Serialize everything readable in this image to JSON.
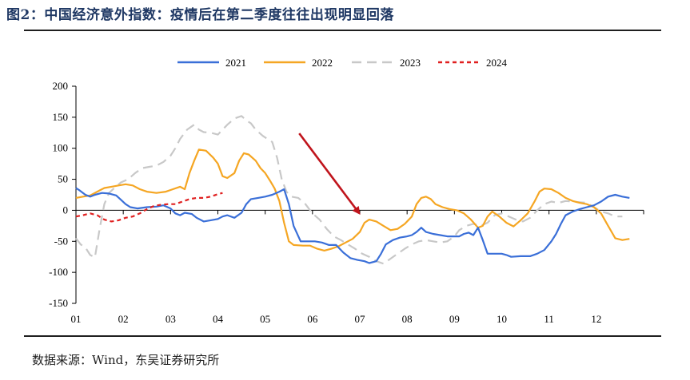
{
  "header": {
    "title": "图2：中国经济意外指数：疫情后在第二季度往往出现明显回落"
  },
  "footer": {
    "source": "数据来源：Wind，东吴证券研究所"
  },
  "colors": {
    "2021": "#3a6fd8",
    "2022": "#f5a623",
    "2023": "#c8c8c8",
    "2024": "#e02020",
    "arrow": "#c0141c",
    "title": "#1f3864"
  },
  "chart_data": {
    "type": "line",
    "title": "",
    "xlabel": "",
    "ylabel": "",
    "x_ticks": [
      "01",
      "02",
      "03",
      "04",
      "05",
      "06",
      "07",
      "08",
      "09",
      "10",
      "11",
      "12"
    ],
    "y_ticks": [
      -150,
      -100,
      -50,
      0,
      50,
      100,
      150,
      200
    ],
    "ylim": [
      -150,
      200
    ],
    "xlim": [
      0,
      12
    ],
    "grid": false,
    "legend_position": "top",
    "annotation": "red arrow pointing down toward July",
    "series": [
      {
        "name": "2021",
        "style": "solid",
        "points": [
          [
            0.0,
            36
          ],
          [
            0.08,
            32
          ],
          [
            0.2,
            25
          ],
          [
            0.3,
            22
          ],
          [
            0.4,
            25
          ],
          [
            0.55,
            28
          ],
          [
            0.7,
            27
          ],
          [
            0.85,
            24
          ],
          [
            0.95,
            17
          ],
          [
            1.05,
            10
          ],
          [
            1.15,
            5
          ],
          [
            1.3,
            3
          ],
          [
            1.5,
            5
          ],
          [
            1.7,
            6
          ],
          [
            1.85,
            8
          ],
          [
            2.0,
            3
          ],
          [
            2.1,
            -5
          ],
          [
            2.2,
            -8
          ],
          [
            2.3,
            -4
          ],
          [
            2.45,
            -6
          ],
          [
            2.55,
            -12
          ],
          [
            2.7,
            -18
          ],
          [
            2.85,
            -16
          ],
          [
            3.0,
            -14
          ],
          [
            3.1,
            -10
          ],
          [
            3.2,
            -8
          ],
          [
            3.35,
            -12
          ],
          [
            3.5,
            -4
          ],
          [
            3.6,
            10
          ],
          [
            3.7,
            18
          ],
          [
            3.85,
            20
          ],
          [
            4.0,
            22
          ],
          [
            4.15,
            25
          ],
          [
            4.3,
            30
          ],
          [
            4.4,
            34
          ],
          [
            4.5,
            10
          ],
          [
            4.6,
            -25
          ],
          [
            4.75,
            -50
          ],
          [
            4.9,
            -50
          ],
          [
            5.05,
            -50
          ],
          [
            5.2,
            -52
          ],
          [
            5.35,
            -56
          ],
          [
            5.5,
            -56
          ],
          [
            5.65,
            -68
          ],
          [
            5.8,
            -77
          ],
          [
            5.95,
            -80
          ],
          [
            6.1,
            -82
          ],
          [
            6.2,
            -85
          ],
          [
            6.35,
            -82
          ],
          [
            6.45,
            -70
          ],
          [
            6.55,
            -55
          ],
          [
            6.7,
            -48
          ],
          [
            6.85,
            -44
          ],
          [
            7.0,
            -42
          ],
          [
            7.1,
            -40
          ],
          [
            7.2,
            -35
          ],
          [
            7.3,
            -28
          ],
          [
            7.4,
            -35
          ],
          [
            7.55,
            -38
          ],
          [
            7.7,
            -40
          ],
          [
            7.85,
            -42
          ],
          [
            8.0,
            -42
          ],
          [
            8.1,
            -42
          ],
          [
            8.2,
            -38
          ],
          [
            8.3,
            -36
          ],
          [
            8.4,
            -40
          ],
          [
            8.5,
            -28
          ],
          [
            8.6,
            -48
          ],
          [
            8.7,
            -70
          ],
          [
            8.85,
            -70
          ],
          [
            9.0,
            -70
          ],
          [
            9.1,
            -72
          ],
          [
            9.2,
            -75
          ],
          [
            9.4,
            -74
          ],
          [
            9.6,
            -74
          ],
          [
            9.75,
            -70
          ],
          [
            9.9,
            -64
          ],
          [
            10.05,
            -50
          ],
          [
            10.15,
            -38
          ],
          [
            10.25,
            -22
          ],
          [
            10.35,
            -8
          ],
          [
            10.5,
            -2
          ],
          [
            10.65,
            2
          ],
          [
            10.8,
            5
          ],
          [
            10.95,
            8
          ],
          [
            11.1,
            14
          ],
          [
            11.25,
            22
          ],
          [
            11.4,
            25
          ],
          [
            11.55,
            22
          ],
          [
            11.7,
            20
          ]
        ]
      },
      {
        "name": "2022",
        "style": "solid",
        "points": [
          [
            0.0,
            20
          ],
          [
            0.15,
            22
          ],
          [
            0.3,
            24
          ],
          [
            0.45,
            30
          ],
          [
            0.6,
            36
          ],
          [
            0.75,
            38
          ],
          [
            0.9,
            40
          ],
          [
            1.05,
            42
          ],
          [
            1.2,
            40
          ],
          [
            1.35,
            34
          ],
          [
            1.5,
            30
          ],
          [
            1.7,
            28
          ],
          [
            1.9,
            30
          ],
          [
            2.05,
            34
          ],
          [
            2.2,
            38
          ],
          [
            2.3,
            34
          ],
          [
            2.4,
            60
          ],
          [
            2.5,
            80
          ],
          [
            2.6,
            98
          ],
          [
            2.75,
            96
          ],
          [
            2.9,
            85
          ],
          [
            3.0,
            75
          ],
          [
            3.1,
            55
          ],
          [
            3.2,
            52
          ],
          [
            3.35,
            60
          ],
          [
            3.45,
            80
          ],
          [
            3.55,
            92
          ],
          [
            3.65,
            90
          ],
          [
            3.8,
            80
          ],
          [
            3.9,
            68
          ],
          [
            4.0,
            60
          ],
          [
            4.1,
            48
          ],
          [
            4.2,
            35
          ],
          [
            4.3,
            15
          ],
          [
            4.4,
            -20
          ],
          [
            4.5,
            -50
          ],
          [
            4.6,
            -56
          ],
          [
            4.8,
            -57
          ],
          [
            4.95,
            -57
          ],
          [
            5.1,
            -62
          ],
          [
            5.25,
            -65
          ],
          [
            5.4,
            -62
          ],
          [
            5.55,
            -58
          ],
          [
            5.7,
            -52
          ],
          [
            5.85,
            -46
          ],
          [
            6.0,
            -35
          ],
          [
            6.1,
            -20
          ],
          [
            6.2,
            -15
          ],
          [
            6.35,
            -18
          ],
          [
            6.5,
            -25
          ],
          [
            6.65,
            -32
          ],
          [
            6.8,
            -30
          ],
          [
            6.95,
            -22
          ],
          [
            7.1,
            -10
          ],
          [
            7.2,
            10
          ],
          [
            7.3,
            20
          ],
          [
            7.4,
            22
          ],
          [
            7.5,
            18
          ],
          [
            7.6,
            10
          ],
          [
            7.75,
            5
          ],
          [
            7.9,
            2
          ],
          [
            8.05,
            0
          ],
          [
            8.2,
            -5
          ],
          [
            8.35,
            -15
          ],
          [
            8.5,
            -28
          ],
          [
            8.6,
            -25
          ],
          [
            8.7,
            -10
          ],
          [
            8.8,
            -2
          ],
          [
            8.95,
            -10
          ],
          [
            9.1,
            -20
          ],
          [
            9.25,
            -26
          ],
          [
            9.4,
            -16
          ],
          [
            9.55,
            -5
          ],
          [
            9.7,
            15
          ],
          [
            9.8,
            30
          ],
          [
            9.9,
            35
          ],
          [
            10.05,
            34
          ],
          [
            10.2,
            28
          ],
          [
            10.35,
            20
          ],
          [
            10.5,
            15
          ],
          [
            10.65,
            12
          ],
          [
            10.8,
            10
          ],
          [
            10.95,
            5
          ],
          [
            11.1,
            -5
          ],
          [
            11.25,
            -25
          ],
          [
            11.4,
            -45
          ],
          [
            11.55,
            -48
          ],
          [
            11.7,
            -46
          ]
        ]
      },
      {
        "name": "2023",
        "style": "dashed",
        "points": [
          [
            0.0,
            -45
          ],
          [
            0.1,
            -55
          ],
          [
            0.2,
            -60
          ],
          [
            0.3,
            -72
          ],
          [
            0.4,
            -76
          ],
          [
            0.5,
            -30
          ],
          [
            0.6,
            10
          ],
          [
            0.7,
            28
          ],
          [
            0.8,
            35
          ],
          [
            0.95,
            45
          ],
          [
            1.1,
            50
          ],
          [
            1.25,
            60
          ],
          [
            1.4,
            68
          ],
          [
            1.55,
            70
          ],
          [
            1.7,
            72
          ],
          [
            1.85,
            78
          ],
          [
            2.0,
            88
          ],
          [
            2.1,
            100
          ],
          [
            2.2,
            115
          ],
          [
            2.35,
            130
          ],
          [
            2.5,
            138
          ],
          [
            2.6,
            130
          ],
          [
            2.7,
            126
          ],
          [
            2.85,
            125
          ],
          [
            3.0,
            122
          ],
          [
            3.1,
            130
          ],
          [
            3.2,
            138
          ],
          [
            3.35,
            148
          ],
          [
            3.5,
            152
          ],
          [
            3.6,
            145
          ],
          [
            3.7,
            140
          ],
          [
            3.8,
            130
          ],
          [
            3.95,
            120
          ],
          [
            4.05,
            115
          ],
          [
            4.15,
            110
          ],
          [
            4.25,
            85
          ],
          [
            4.35,
            50
          ],
          [
            4.45,
            30
          ],
          [
            4.55,
            22
          ],
          [
            4.7,
            20
          ],
          [
            4.85,
            10
          ],
          [
            5.0,
            -5
          ],
          [
            5.15,
            -15
          ],
          [
            5.3,
            -30
          ],
          [
            5.45,
            -42
          ],
          [
            5.6,
            -48
          ],
          [
            5.75,
            -55
          ],
          [
            5.9,
            -62
          ],
          [
            6.05,
            -70
          ],
          [
            6.2,
            -75
          ],
          [
            6.35,
            -82
          ],
          [
            6.5,
            -86
          ],
          [
            6.65,
            -78
          ],
          [
            6.8,
            -70
          ],
          [
            6.95,
            -62
          ],
          [
            7.1,
            -55
          ],
          [
            7.25,
            -50
          ],
          [
            7.4,
            -48
          ],
          [
            7.55,
            -50
          ],
          [
            7.7,
            -52
          ],
          [
            7.85,
            -50
          ],
          [
            8.0,
            -42
          ],
          [
            8.1,
            -32
          ],
          [
            8.25,
            -25
          ],
          [
            8.4,
            -22
          ],
          [
            8.55,
            -25
          ],
          [
            8.7,
            -20
          ],
          [
            8.85,
            -8
          ],
          [
            9.0,
            -5
          ],
          [
            9.15,
            -10
          ],
          [
            9.3,
            -15
          ],
          [
            9.45,
            -18
          ],
          [
            9.6,
            -12
          ],
          [
            9.75,
            0
          ],
          [
            9.9,
            10
          ],
          [
            10.05,
            14
          ],
          [
            10.2,
            12
          ],
          [
            10.35,
            15
          ],
          [
            10.5,
            14
          ],
          [
            10.65,
            13
          ],
          [
            10.8,
            12
          ],
          [
            10.95,
            5
          ],
          [
            11.1,
            -2
          ],
          [
            11.25,
            -5
          ],
          [
            11.4,
            -10
          ],
          [
            11.55,
            -10
          ]
        ]
      },
      {
        "name": "2024",
        "style": "dotted",
        "points": [
          [
            0.0,
            -10
          ],
          [
            0.15,
            -8
          ],
          [
            0.3,
            -5
          ],
          [
            0.45,
            -8
          ],
          [
            0.6,
            -15
          ],
          [
            0.75,
            -18
          ],
          [
            0.9,
            -16
          ],
          [
            1.05,
            -12
          ],
          [
            1.2,
            -10
          ],
          [
            1.35,
            -5
          ],
          [
            1.5,
            2
          ],
          [
            1.65,
            7
          ],
          [
            1.8,
            9
          ],
          [
            1.95,
            10
          ],
          [
            2.1,
            10
          ],
          [
            2.25,
            14
          ],
          [
            2.4,
            18
          ],
          [
            2.55,
            20
          ],
          [
            2.7,
            20
          ],
          [
            2.85,
            22
          ],
          [
            3.0,
            26
          ],
          [
            3.1,
            28
          ]
        ]
      }
    ]
  }
}
